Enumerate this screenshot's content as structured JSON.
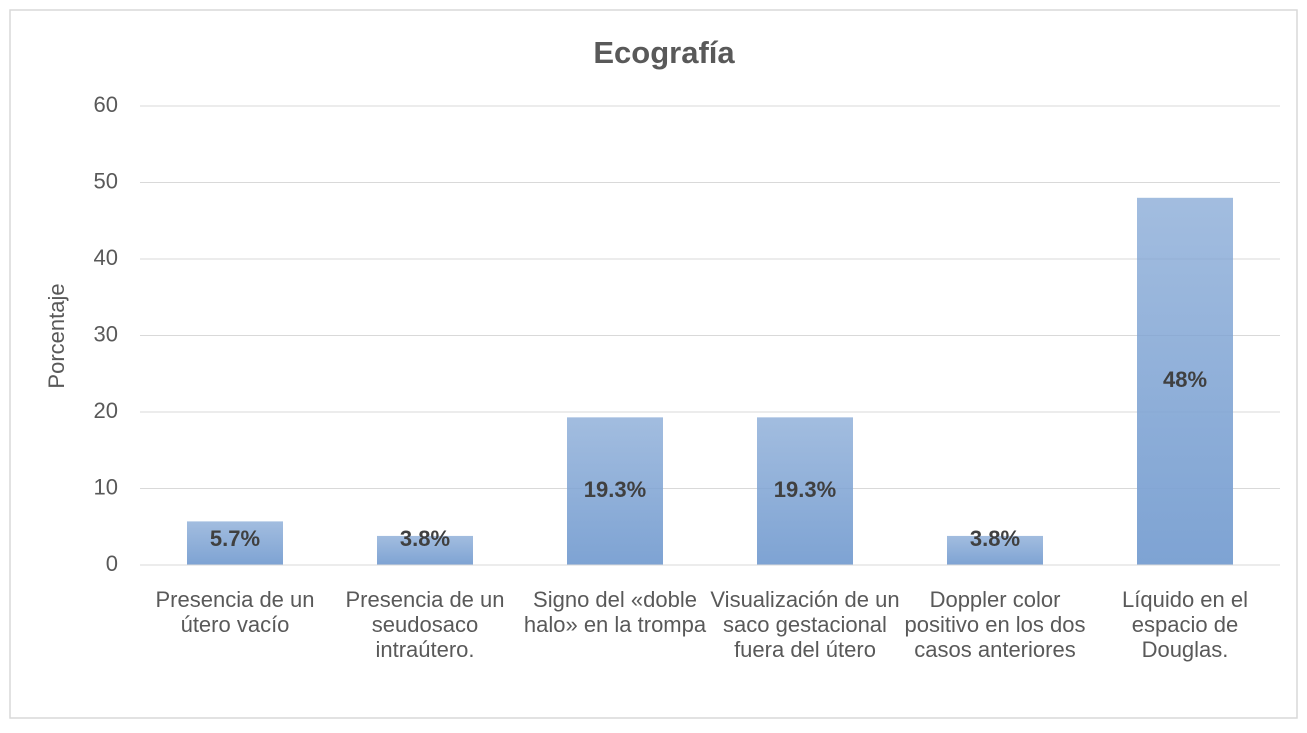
{
  "chart_data": {
    "type": "bar",
    "title": "Ecografía",
    "y_label": "Porcentaje",
    "categories": [
      "Presencia de un útero vacío",
      "Presencia de un seudosaco intraútero.",
      "Signo del «doble halo» en la trompa",
      "Visualización de un saco gestacional fuera del útero",
      "Doppler color positivo en los dos casos anteriores",
      "Líquido en el espacio de Douglas."
    ],
    "values": [
      5.7,
      3.8,
      19.3,
      19.3,
      3.8,
      48
    ],
    "value_labels": [
      "5.7%",
      "3.8%",
      "19.3%",
      "19.3%",
      "3.8%",
      "48%"
    ],
    "color": "#7ea3d3",
    "ylim": [
      0,
      60
    ],
    "yticks": [
      0,
      10,
      20,
      30,
      40,
      50,
      60
    ],
    "grid": true
  }
}
